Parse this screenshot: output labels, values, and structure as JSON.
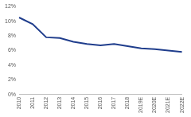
{
  "chart_data": {
    "type": "line",
    "categories": [
      "2010",
      "2011",
      "2012",
      "2013",
      "2014",
      "2015",
      "2016",
      "2017",
      "2018",
      "2019E",
      "2020E",
      "2021E",
      "2022E"
    ],
    "values": [
      10.5,
      9.6,
      7.8,
      7.7,
      7.2,
      6.9,
      6.7,
      6.9,
      6.6,
      6.3,
      6.2,
      6.0,
      5.8
    ],
    "color": "#1f3d8c",
    "ylim": [
      0,
      12
    ],
    "yticks": [
      {
        "value": 0,
        "label": "0%"
      },
      {
        "value": 2,
        "label": "2%"
      },
      {
        "value": 4,
        "label": "4%"
      },
      {
        "value": 6,
        "label": "6%"
      },
      {
        "value": 8,
        "label": "8%"
      },
      {
        "value": 10,
        "label": "10%"
      },
      {
        "value": 12,
        "label": "12%"
      }
    ],
    "grid": false
  }
}
